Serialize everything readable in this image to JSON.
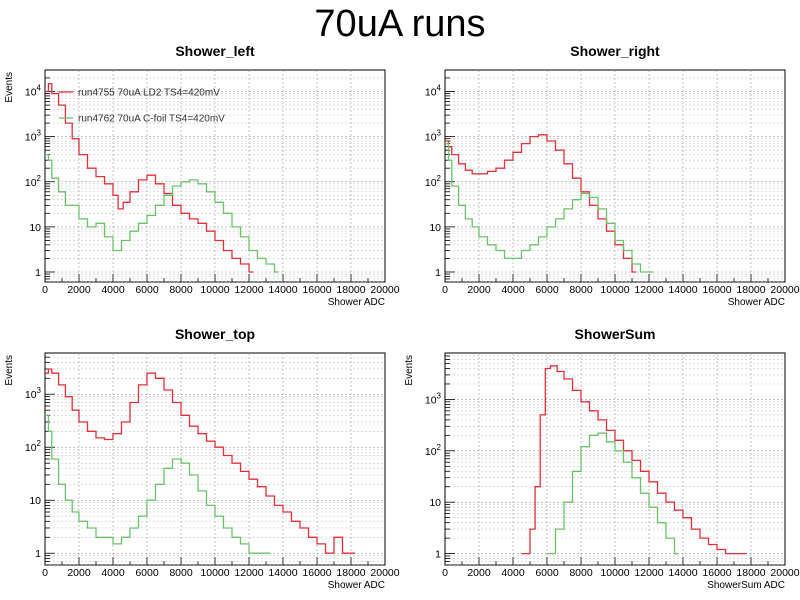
{
  "slide_title": "70uA runs",
  "colors": {
    "series_red": "#e0303a",
    "series_green": "#6cc26a"
  },
  "chart_data": [
    {
      "type": "line",
      "title": "Shower_left",
      "xlabel": "Shower ADC",
      "ylabel": "Events",
      "xlim": [
        0,
        20000
      ],
      "ylim": [
        0.6,
        30000
      ],
      "log_y": true,
      "grid": true,
      "x_tick_labels": [
        "0",
        "2000",
        "4000",
        "6000",
        "8000",
        "10000",
        "12000",
        "14000",
        "16000",
        "18000",
        "20000"
      ],
      "y_tick_labels": [
        "1",
        "10",
        "10^2",
        "10^3",
        "10^4"
      ],
      "legend": [
        "run4755 70uA LD2 TS4=420mV",
        "run4762 70uA C-foil TS4=420mV"
      ],
      "legend_position": "top-left",
      "series": [
        {
          "name": "run4755 70uA LD2 TS4=420mV",
          "color": "#e0303a",
          "x": [
            0,
            200,
            400,
            800,
            1200,
            1600,
            2000,
            2500,
            3000,
            3500,
            4000,
            4300,
            4600,
            5000,
            5500,
            6000,
            6500,
            7000,
            7500,
            8000,
            8500,
            9000,
            9500,
            10000,
            10500,
            11000,
            11500,
            12000
          ],
          "y": [
            10000,
            15000,
            9000,
            5000,
            2000,
            900,
            400,
            200,
            130,
            90,
            50,
            25,
            35,
            60,
            110,
            140,
            90,
            55,
            30,
            20,
            15,
            12,
            8,
            5,
            3,
            2,
            1.5,
            1
          ]
        },
        {
          "name": "run4762 70uA C-foil TS4=420mV",
          "color": "#6cc26a",
          "x": [
            0,
            200,
            400,
            800,
            1200,
            2000,
            2500,
            3000,
            3500,
            4000,
            4500,
            5000,
            5500,
            6000,
            6500,
            7000,
            7500,
            8000,
            8500,
            9000,
            9500,
            10000,
            10500,
            11000,
            11500,
            12000,
            12500,
            13000,
            13500
          ],
          "y": [
            400,
            300,
            120,
            60,
            30,
            15,
            10,
            12,
            6,
            3,
            5,
            8,
            12,
            18,
            30,
            50,
            80,
            100,
            110,
            90,
            60,
            35,
            20,
            10,
            6,
            3,
            2,
            1.5,
            1
          ]
        }
      ]
    },
    {
      "type": "line",
      "title": "Shower_right",
      "xlabel": "Shower ADC",
      "ylabel": "",
      "xlim": [
        0,
        20000
      ],
      "ylim": [
        0.6,
        30000
      ],
      "log_y": true,
      "grid": true,
      "x_tick_labels": [
        "0",
        "2000",
        "4000",
        "6000",
        "8000",
        "10000",
        "12000",
        "14000",
        "16000",
        "18000",
        "20000"
      ],
      "y_tick_labels": [
        "1",
        "10",
        "10^2",
        "10^3",
        "10^4"
      ],
      "series": [
        {
          "color": "#e0303a",
          "x": [
            0,
            200,
            400,
            800,
            1200,
            1600,
            2000,
            2500,
            3000,
            3500,
            4000,
            4500,
            5000,
            5500,
            6000,
            6500,
            7000,
            7500,
            8000,
            8500,
            9000,
            9500,
            10000,
            10500,
            11000
          ],
          "y": [
            800,
            600,
            400,
            250,
            180,
            150,
            150,
            170,
            200,
            300,
            450,
            700,
            1000,
            1100,
            800,
            500,
            250,
            120,
            60,
            30,
            15,
            8,
            4,
            2,
            1
          ]
        },
        {
          "color": "#6cc26a",
          "x": [
            0,
            200,
            400,
            800,
            1200,
            1600,
            2000,
            2500,
            3000,
            3500,
            4000,
            4500,
            5000,
            5500,
            6000,
            6500,
            7000,
            7500,
            8000,
            8500,
            9000,
            9500,
            10000,
            10500,
            11000,
            11500,
            12000
          ],
          "y": [
            700,
            300,
            80,
            30,
            15,
            10,
            6,
            4,
            3,
            2,
            2,
            3,
            4,
            6,
            10,
            15,
            25,
            40,
            55,
            45,
            25,
            12,
            5,
            3,
            1.5,
            1,
            1
          ]
        }
      ]
    },
    {
      "type": "line",
      "title": "Shower_top",
      "xlabel": "Shower ADC",
      "ylabel": "Events",
      "xlim": [
        0,
        20000
      ],
      "ylim": [
        0.6,
        6000
      ],
      "log_y": true,
      "grid": true,
      "x_tick_labels": [
        "0",
        "2000",
        "4000",
        "6000",
        "8000",
        "10000",
        "12000",
        "14000",
        "16000",
        "18000",
        "20000"
      ],
      "y_tick_labels": [
        "1",
        "10",
        "10^2",
        "10^3"
      ],
      "series": [
        {
          "color": "#e0303a",
          "x": [
            0,
            200,
            400,
            800,
            1200,
            1600,
            2000,
            2500,
            3000,
            3500,
            4000,
            4500,
            5000,
            5500,
            6000,
            6500,
            7000,
            7500,
            8000,
            8500,
            9000,
            9500,
            10000,
            10500,
            11000,
            11500,
            12000,
            12500,
            13000,
            13500,
            14000,
            14500,
            15000,
            15500,
            16000,
            16500,
            17000,
            17500,
            18000
          ],
          "y": [
            2500,
            3000,
            2500,
            1500,
            900,
            500,
            300,
            200,
            150,
            140,
            180,
            300,
            700,
            1500,
            2500,
            2000,
            1200,
            700,
            400,
            250,
            180,
            130,
            100,
            70,
            50,
            35,
            25,
            18,
            12,
            8,
            6,
            4,
            3,
            2,
            1.5,
            1,
            2,
            1,
            1
          ]
        },
        {
          "color": "#6cc26a",
          "x": [
            0,
            200,
            400,
            800,
            1200,
            1600,
            2000,
            2500,
            3000,
            3500,
            4000,
            4500,
            5000,
            5500,
            6000,
            6500,
            7000,
            7500,
            8000,
            8500,
            9000,
            9500,
            10000,
            10500,
            11000,
            11500,
            12000,
            12500,
            13000
          ],
          "y": [
            400,
            200,
            60,
            20,
            10,
            6,
            4,
            3,
            2,
            2,
            1.5,
            2,
            3,
            5,
            10,
            20,
            40,
            60,
            50,
            30,
            15,
            8,
            5,
            3,
            2,
            1.5,
            1,
            1,
            1
          ]
        }
      ]
    },
    {
      "type": "line",
      "title": "ShowerSum",
      "xlabel": "ShowerSum ADC",
      "ylabel": "Events",
      "xlim": [
        0,
        20000
      ],
      "ylim": [
        0.6,
        8000
      ],
      "log_y": true,
      "grid": true,
      "x_tick_labels": [
        "0",
        "2000",
        "4000",
        "6000",
        "8000",
        "10000",
        "12000",
        "14000",
        "16000",
        "18000",
        "20000"
      ],
      "y_tick_labels": [
        "1",
        "10",
        "10^2",
        "10^3"
      ],
      "series": [
        {
          "color": "#e0303a",
          "x": [
            4500,
            5000,
            5300,
            5600,
            5900,
            6200,
            6600,
            7000,
            7500,
            8000,
            8500,
            9000,
            9500,
            10000,
            10500,
            11000,
            11500,
            12000,
            12500,
            13000,
            13500,
            14000,
            14500,
            15000,
            15500,
            16000,
            16500,
            17000,
            17500
          ],
          "y": [
            1,
            3,
            20,
            500,
            4000,
            4500,
            3500,
            2500,
            1500,
            900,
            600,
            400,
            250,
            160,
            100,
            65,
            40,
            25,
            15,
            10,
            7,
            5,
            3,
            2,
            1.5,
            1.2,
            1,
            1,
            1
          ]
        },
        {
          "color": "#6cc26a",
          "x": [
            6000,
            6500,
            7000,
            7500,
            8000,
            8500,
            9000,
            9500,
            10000,
            10500,
            11000,
            11500,
            12000,
            12500,
            13000,
            13500
          ],
          "y": [
            1,
            3,
            10,
            40,
            120,
            200,
            220,
            150,
            100,
            60,
            30,
            15,
            8,
            4,
            2,
            1
          ]
        }
      ]
    }
  ]
}
